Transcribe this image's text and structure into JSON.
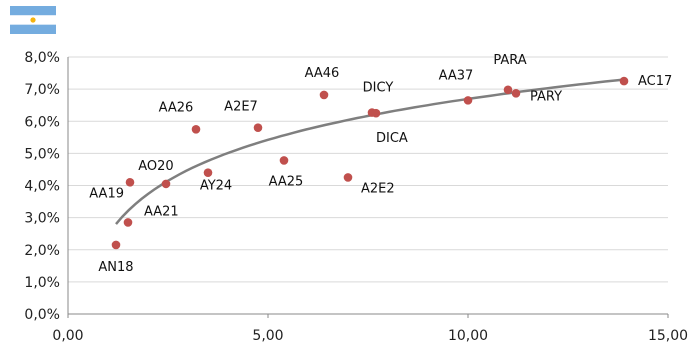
{
  "flag": {
    "name": "argentina-flag-icon",
    "colors": [
      "#74acdf",
      "#ffffff",
      "#74acdf"
    ],
    "sun_color": "#f6b40e"
  },
  "chart_data": {
    "type": "scatter",
    "title": "",
    "xlabel": "",
    "ylabel": "",
    "xlim": [
      0,
      15
    ],
    "ylim": [
      0,
      8
    ],
    "x_ticks": [
      "0,00",
      "5,00",
      "10,00",
      "15,00"
    ],
    "y_ticks": [
      "0,0%",
      "1,0%",
      "2,0%",
      "3,0%",
      "4,0%",
      "5,0%",
      "6,0%",
      "7,0%",
      "8,0%"
    ],
    "grid": true,
    "legend": "none",
    "marker_color": "#c0504d",
    "trendline_color": "#7f7f7f",
    "points": [
      {
        "label": "AN18",
        "x": 1.2,
        "y": 2.15
      },
      {
        "label": "AA21",
        "x": 1.5,
        "y": 2.85
      },
      {
        "label": "AA19",
        "x": 1.55,
        "y": 4.1
      },
      {
        "label": "AO20",
        "x": 2.45,
        "y": 4.05
      },
      {
        "label": "AA26",
        "x": 3.2,
        "y": 5.75
      },
      {
        "label": "AY24",
        "x": 3.5,
        "y": 4.4
      },
      {
        "label": "A2E7",
        "x": 4.75,
        "y": 5.8
      },
      {
        "label": "AA25",
        "x": 5.4,
        "y": 4.78
      },
      {
        "label": "AA46",
        "x": 6.4,
        "y": 6.82
      },
      {
        "label": "A2E2",
        "x": 7.0,
        "y": 4.25
      },
      {
        "label": "DICY",
        "x": 7.6,
        "y": 6.27
      },
      {
        "label": "DICA",
        "x": 7.7,
        "y": 6.25
      },
      {
        "label": "AA37",
        "x": 10.0,
        "y": 6.65
      },
      {
        "label": "PARA",
        "x": 11.0,
        "y": 6.98
      },
      {
        "label": "PARY",
        "x": 11.2,
        "y": 6.87
      },
      {
        "label": "AC17",
        "x": 13.9,
        "y": 7.25
      }
    ],
    "trendline": {
      "type": "logarithmic",
      "x_start": 1.2,
      "x_end": 13.9,
      "y_start": 2.8,
      "y_end": 7.3
    }
  }
}
